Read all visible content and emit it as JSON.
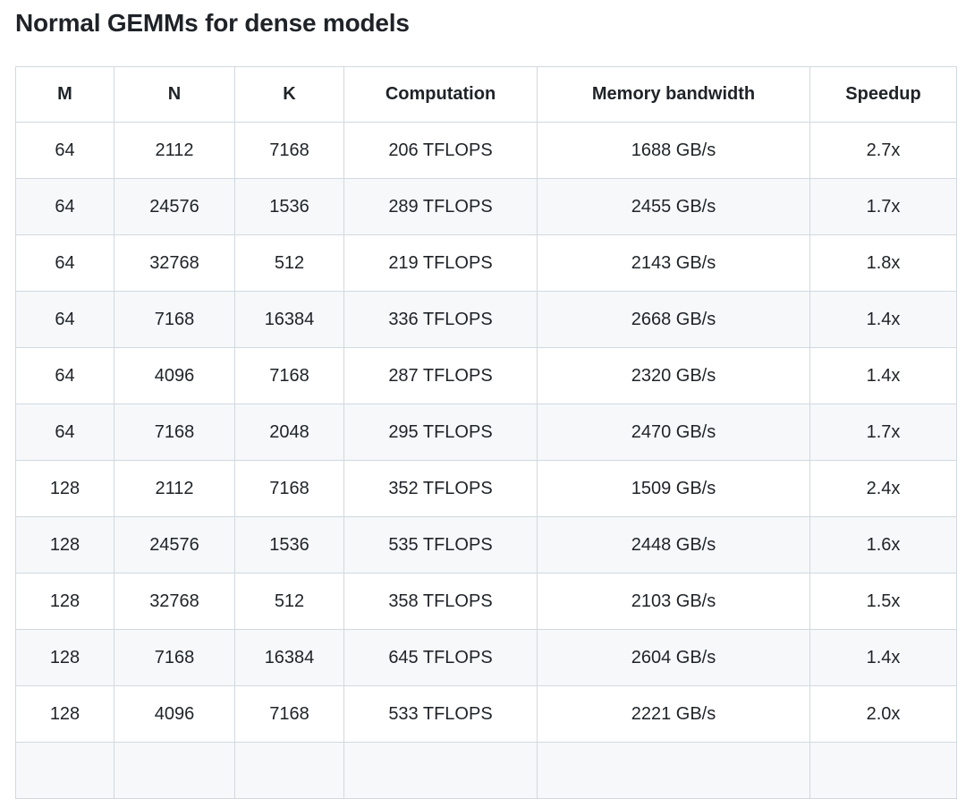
{
  "page": {
    "title": "Normal GEMMs for dense models"
  },
  "table": {
    "columns": [
      "M",
      "N",
      "K",
      "Computation",
      "Memory bandwidth",
      "Speedup"
    ],
    "rows": [
      [
        "64",
        "2112",
        "7168",
        "206 TFLOPS",
        "1688 GB/s",
        "2.7x"
      ],
      [
        "64",
        "24576",
        "1536",
        "289 TFLOPS",
        "2455 GB/s",
        "1.7x"
      ],
      [
        "64",
        "32768",
        "512",
        "219 TFLOPS",
        "2143 GB/s",
        "1.8x"
      ],
      [
        "64",
        "7168",
        "16384",
        "336 TFLOPS",
        "2668 GB/s",
        "1.4x"
      ],
      [
        "64",
        "4096",
        "7168",
        "287 TFLOPS",
        "2320 GB/s",
        "1.4x"
      ],
      [
        "64",
        "7168",
        "2048",
        "295 TFLOPS",
        "2470 GB/s",
        "1.7x"
      ],
      [
        "128",
        "2112",
        "7168",
        "352 TFLOPS",
        "1509 GB/s",
        "2.4x"
      ],
      [
        "128",
        "24576",
        "1536",
        "535 TFLOPS",
        "2448 GB/s",
        "1.6x"
      ],
      [
        "128",
        "32768",
        "512",
        "358 TFLOPS",
        "2103 GB/s",
        "1.5x"
      ],
      [
        "128",
        "7168",
        "16384",
        "645 TFLOPS",
        "2604 GB/s",
        "1.4x"
      ],
      [
        "128",
        "4096",
        "7168",
        "533 TFLOPS",
        "2221 GB/s",
        "2.0x"
      ]
    ],
    "partial_row_cells": [
      "",
      "",
      "",
      "",
      "",
      ""
    ]
  },
  "colors": {
    "text": "#1f2328",
    "border": "#d1d9e0",
    "zebra_row_bg": "#f6f8fa",
    "page_bg": "#ffffff"
  }
}
